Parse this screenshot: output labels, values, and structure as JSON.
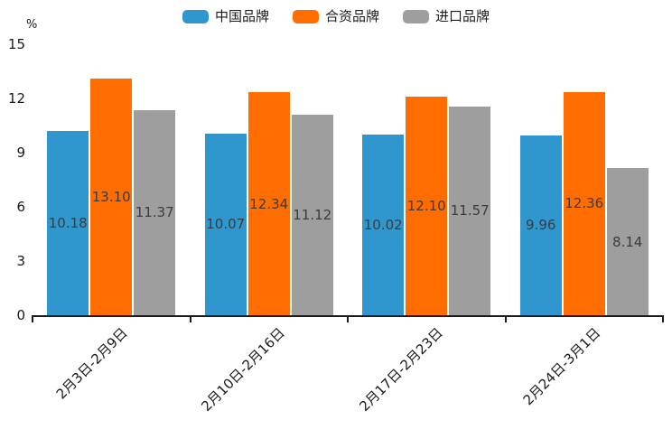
{
  "chart_data": {
    "type": "bar",
    "title": "",
    "unit_label": "%",
    "categories": [
      "2月3日-2月9日",
      "2月10日-2月16日",
      "2月17日-2月23日",
      "2月24日-3月1日"
    ],
    "series": [
      {
        "name": "中国品牌",
        "color": "#3096CE",
        "values": [
          10.18,
          10.07,
          10.02,
          9.96
        ]
      },
      {
        "name": "合资品牌",
        "color": "#FF6D00",
        "values": [
          13.1,
          12.34,
          12.1,
          12.36
        ]
      },
      {
        "name": "进口品牌",
        "color": "#9E9E9E",
        "values": [
          11.37,
          11.12,
          11.57,
          8.14
        ]
      }
    ],
    "ylim": [
      0,
      15
    ],
    "yticks": [
      0,
      3,
      6,
      9,
      12,
      15
    ],
    "grid": false,
    "legend_position": "top",
    "value_labels": "inside-middle",
    "value_label_format": "2-decimals",
    "value_label_color": "#3C3C3C",
    "axis_color": "#1A1A1A"
  }
}
